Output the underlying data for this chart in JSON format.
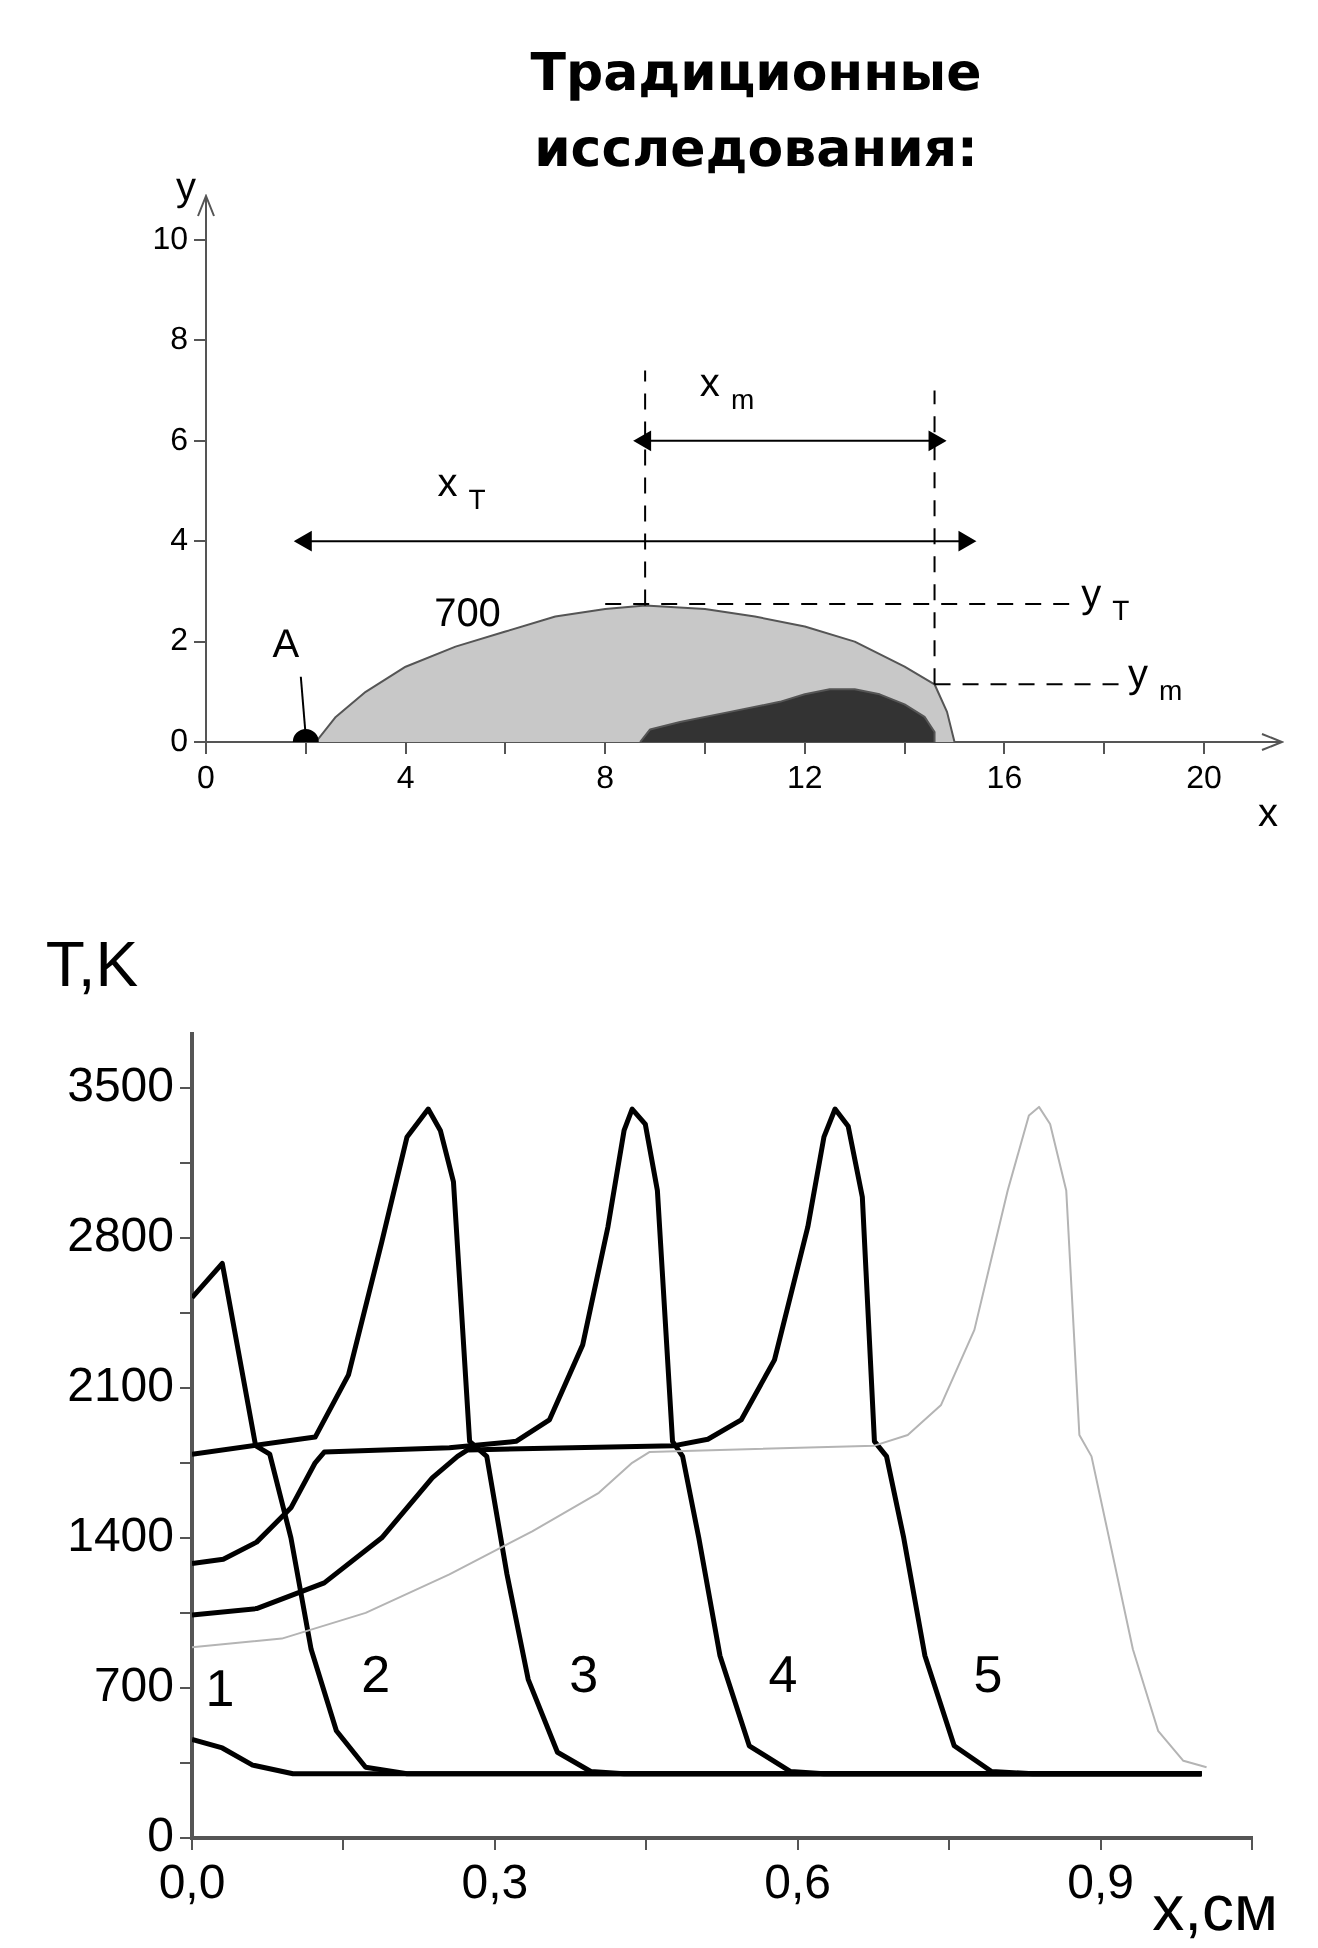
{
  "chart_data": [
    {
      "type": "area",
      "title": "Традиционные исследования:",
      "xlabel": "x",
      "ylabel": "y",
      "xlim": [
        0,
        20
      ],
      "xticks": [
        0,
        {
          "value": 2,
          "label": null
        },
        4,
        {
          "value": 6,
          "label": null
        },
        8,
        {
          "value": 10,
          "label": null
        },
        12,
        {
          "value": 14,
          "label": null
        },
        16,
        {
          "value": 18,
          "label": null
        },
        20
      ],
      "ylim": [
        0,
        10
      ],
      "yticks": [
        0,
        2,
        4,
        6,
        8,
        10
      ],
      "series": [
        {
          "type": "area",
          "name": "700",
          "color": "#c8c8c8",
          "x": [
            2.2,
            2.6,
            3.2,
            4,
            5,
            6,
            7,
            8,
            8.8,
            10,
            11,
            12,
            13,
            14,
            14.6,
            14.85,
            15.0
          ],
          "values": [
            0,
            0.5,
            1.0,
            1.5,
            1.9,
            2.2,
            2.5,
            2.65,
            2.72,
            2.65,
            2.5,
            2.3,
            2.0,
            1.5,
            1.15,
            0.6,
            0
          ]
        },
        {
          "type": "area",
          "color": "#333333",
          "x": [
            8.7,
            8.9,
            9.5,
            10.5,
            11.5,
            12,
            12.5,
            13,
            13.5,
            14,
            14.4,
            14.6,
            14.6
          ],
          "values": [
            0,
            0.25,
            0.4,
            0.6,
            0.8,
            0.95,
            1.05,
            1.05,
            0.95,
            0.75,
            0.5,
            0.2,
            0
          ]
        },
        {
          "type": "line",
          "color": "#000000",
          "line_style": "dashed",
          "x": [
            8.8,
            8.8
          ],
          "values": [
            2.72,
            7.4
          ]
        },
        {
          "type": "line",
          "color": "#000000",
          "line_style": "dashed",
          "x": [
            14.6,
            14.6
          ],
          "values": [
            1.15,
            7.0
          ]
        },
        {
          "type": "line",
          "name": "y $_{T}$",
          "color": "#000000",
          "line_style": "dashed",
          "x": [
            8,
            17.3
          ],
          "values": [
            2.75,
            2.75
          ]
        },
        {
          "type": "line",
          "name": "y $_{m}$",
          "color": "#000000",
          "line_style": "dashed",
          "x": [
            14.6,
            18.3
          ],
          "values": [
            1.15,
            1.15
          ]
        },
        {
          "type": "line",
          "name": "x $_{T}$",
          "color": "#000000",
          "marker": "triangle",
          "x": [
            2,
            15.2
          ],
          "values": [
            4,
            4
          ]
        },
        {
          "type": "line",
          "name": "x $_{m}$",
          "color": "#000000",
          "marker": "triangle",
          "x": [
            8.8,
            14.6
          ],
          "values": [
            6,
            6
          ]
        },
        {
          "type": "line",
          "color": "#000000",
          "x": [
            1.9,
            2
          ],
          "values": [
            1.3,
            0.1
          ]
        },
        {
          "type": "scatter",
          "name": "A",
          "color": "#000000",
          "marker": "circle",
          "x": [
            2
          ],
          "values": [
            0
          ]
        }
      ]
    },
    {
      "type": "line",
      "xlabel": "x,см",
      "ylabel": "T,K",
      "xlim": [
        0,
        1.05
      ],
      "xticks": [
        {
          "value": 0,
          "label": "0,0"
        },
        {
          "value": 0.15,
          "label": null
        },
        {
          "value": 0.3,
          "label": "0,3"
        },
        {
          "value": 0.45,
          "label": null
        },
        {
          "value": 0.6,
          "label": "0,6"
        },
        {
          "value": 0.75,
          "label": null
        },
        {
          "value": 0.9,
          "label": "0,9"
        },
        {
          "value": 1.05,
          "label": null
        }
      ],
      "ylim": [
        0,
        3750
      ],
      "yticks": [
        0,
        {
          "value": 350,
          "label": null
        },
        700,
        {
          "value": 1050,
          "label": null
        },
        1400,
        {
          "value": 1750,
          "label": null
        },
        2100,
        {
          "value": 2450,
          "label": null
        },
        2800,
        {
          "value": 3150,
          "label": null
        },
        3500
      ],
      "series": [
        {
          "name": "1",
          "color": "#000000",
          "x": [
            0,
            0.03,
            0.06,
            0.1,
            1.0
          ],
          "values": [
            460,
            420,
            340,
            300,
            300
          ]
        },
        {
          "name": "2",
          "color": "#000000",
          "x": [
            0,
            0.03,
            0.063,
            0.077,
            0.098,
            0.118,
            0.143,
            0.172,
            0.213,
            1.0
          ],
          "values": [
            2520,
            2680,
            1830,
            1790,
            1400,
            880,
            500,
            330,
            300,
            300
          ]
        },
        {
          "name": "3",
          "color": "#000000",
          "x": [
            0,
            0.122,
            0.155,
            0.188,
            0.213,
            0.234,
            0.246,
            0.259,
            0.275,
            0.292,
            0.312,
            0.333,
            0.362,
            0.395,
            0.428,
            1.0
          ],
          "values": [
            1790,
            1870,
            2160,
            2780,
            3270,
            3400,
            3300,
            3060,
            1850,
            1780,
            1230,
            740,
            400,
            310,
            300,
            300
          ]
        },
        {
          "name": "4",
          "color": "#000000",
          "x": [
            0,
            0.031,
            0.064,
            0.098,
            0.122,
            0.131,
            0.255,
            0.321,
            0.354,
            0.387,
            0.412,
            0.428,
            0.436,
            0.449,
            0.461,
            0.476,
            0.486,
            0.502,
            0.523,
            0.552,
            0.593,
            0.626,
            1.0
          ],
          "values": [
            1280,
            1300,
            1380,
            1540,
            1750,
            1800,
            1820,
            1850,
            1950,
            2300,
            2850,
            3300,
            3400,
            3330,
            3020,
            1850,
            1780,
            1400,
            850,
            430,
            310,
            300,
            300
          ]
        },
        {
          "name": "5",
          "color": "#000000",
          "x": [
            0,
            0.064,
            0.131,
            0.188,
            0.238,
            0.263,
            0.273,
            0.478,
            0.511,
            0.544,
            0.577,
            0.61,
            0.626,
            0.637,
            0.65,
            0.664,
            0.676,
            0.688,
            0.705,
            0.726,
            0.755,
            0.792,
            0.833,
            1.0
          ],
          "values": [
            1040,
            1070,
            1190,
            1400,
            1680,
            1780,
            1810,
            1830,
            1860,
            1950,
            2230,
            2850,
            3270,
            3400,
            3320,
            2990,
            1850,
            1780,
            1400,
            850,
            430,
            310,
            300,
            300
          ]
        },
        {
          "color": "#b4b4b4",
          "x": [
            0,
            0.089,
            0.172,
            0.255,
            0.337,
            0.403,
            0.436,
            0.453,
            0.676,
            0.709,
            0.742,
            0.775,
            0.808,
            0.829,
            0.839,
            0.85,
            0.866,
            0.879,
            0.891,
            0.907,
            0.932,
            0.957,
            0.982,
            1.005
          ],
          "values": [
            890,
            930,
            1050,
            1230,
            1430,
            1610,
            1750,
            1800,
            1830,
            1880,
            2020,
            2370,
            3020,
            3370,
            3410,
            3330,
            3020,
            1880,
            1780,
            1430,
            880,
            500,
            360,
            330
          ]
        }
      ]
    }
  ]
}
